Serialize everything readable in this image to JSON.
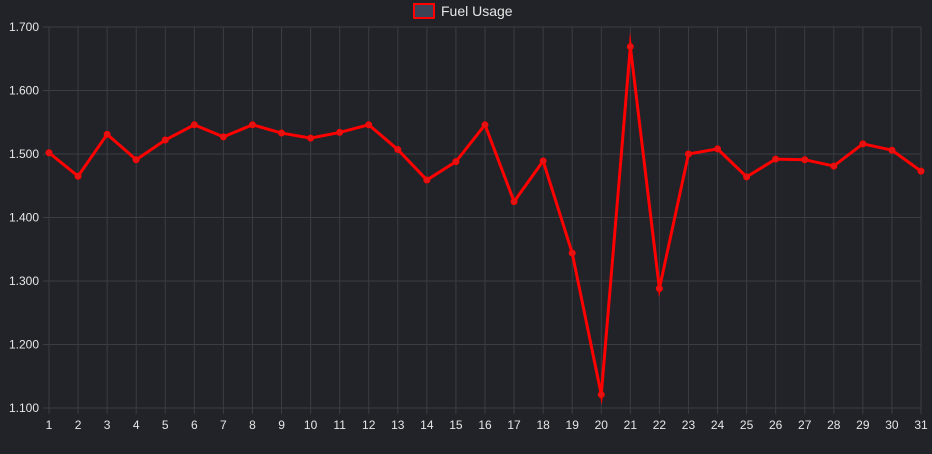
{
  "chart_data": {
    "type": "line",
    "legend": {
      "position": "top-center"
    },
    "series": [
      {
        "name": "Fuel Usage",
        "color": "#ff0000",
        "point_color": "#e01515",
        "legend_fill": "#3b4356",
        "values": [
          1.502,
          1.465,
          1.531,
          1.491,
          1.522,
          1.546,
          1.527,
          1.546,
          1.533,
          1.525,
          1.534,
          1.546,
          1.507,
          1.459,
          1.488,
          1.546,
          1.425,
          1.489,
          1.344,
          1.121,
          1.669,
          1.288,
          1.5,
          1.508,
          1.464,
          1.492,
          1.491,
          1.481,
          1.516,
          1.506,
          1.473
        ]
      }
    ],
    "categories": [
      "1",
      "2",
      "3",
      "4",
      "5",
      "6",
      "7",
      "8",
      "9",
      "10",
      "11",
      "12",
      "13",
      "14",
      "15",
      "16",
      "17",
      "18",
      "19",
      "20",
      "21",
      "22",
      "23",
      "24",
      "25",
      "26",
      "27",
      "28",
      "29",
      "30",
      "31"
    ],
    "y_ticks": [
      "1.100",
      "1.200",
      "1.300",
      "1.400",
      "1.500",
      "1.600",
      "1.700"
    ],
    "ylim": [
      1.1,
      1.7
    ],
    "grid": true,
    "background": "#212328",
    "grid_color": "#3a3d42",
    "text_color": "#e6e6e6"
  }
}
